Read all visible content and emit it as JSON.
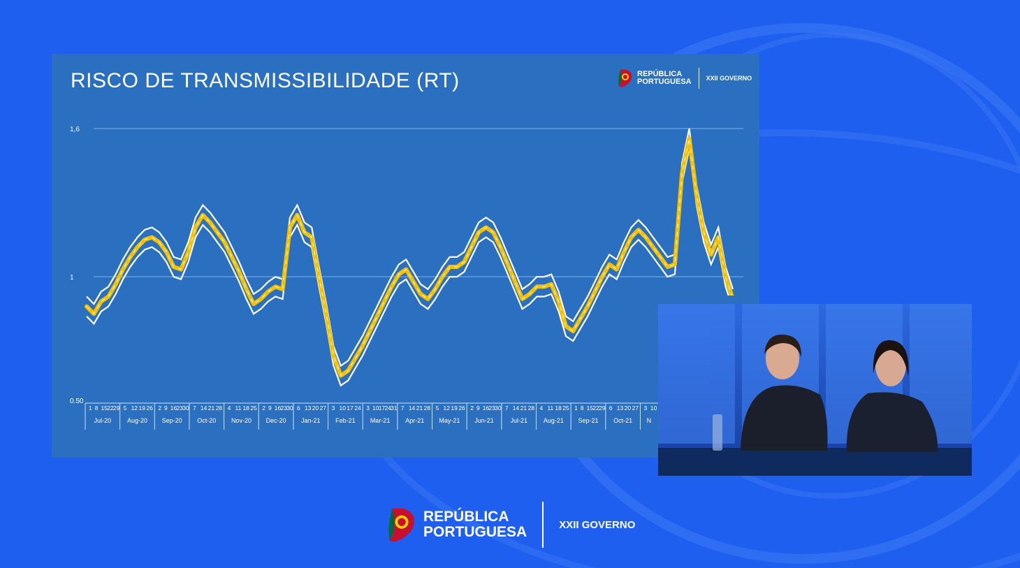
{
  "colors": {
    "background": "#1e5ff0",
    "slide": "#2a6fc0",
    "line_main": "#f5c000",
    "line_ci": "#ffffff",
    "grid": "#7fb0e8"
  },
  "slide": {
    "title": "RISCO DE TRANSMISSIBILIDADE (RT)",
    "logo": {
      "line1": "REPÚBLICA",
      "line2": "PORTUGUESA",
      "gov": "XXII GOVERNO"
    }
  },
  "footer": {
    "line1": "REPÚBLICA",
    "line2": "PORTUGUESA",
    "gov": "XXII GOVERNO"
  },
  "chart_data": {
    "type": "line",
    "title": "RISCO DE TRANSMISSIBILIDADE (RT)",
    "y_ticks": [
      "1,6",
      "1",
      "0.50"
    ],
    "ylim": [
      0.5,
      1.6
    ],
    "grid": true,
    "months": [
      "Jul-20",
      "Aug-20",
      "Sep-20",
      "Oct-20",
      "Nov-20",
      "Dec-20",
      "Jan-21",
      "Feb-21",
      "Mar-21",
      "Apr-21",
      "May-21",
      "Jun-21",
      "Jul-21",
      "Aug-21",
      "Sep-21",
      "Oct-21",
      "N"
    ],
    "week_days": [
      [
        "1",
        "8",
        "15",
        "22",
        "29"
      ],
      [
        "5",
        "12",
        "19",
        "26"
      ],
      [
        "2",
        "9",
        "16",
        "23",
        "30"
      ],
      [
        "7",
        "14",
        "21",
        "28"
      ],
      [
        "4",
        "11",
        "18",
        "25"
      ],
      [
        "2",
        "9",
        "16",
        "23",
        "30"
      ],
      [
        "6",
        "13",
        "20",
        "27"
      ],
      [
        "3",
        "10",
        "17",
        "24"
      ],
      [
        "3",
        "10",
        "17",
        "24",
        "31"
      ],
      [
        "7",
        "14",
        "21",
        "28"
      ],
      [
        "5",
        "12",
        "19",
        "26"
      ],
      [
        "2",
        "9",
        "16",
        "23",
        "30"
      ],
      [
        "7",
        "14",
        "21",
        "28"
      ],
      [
        "4",
        "11",
        "18",
        "25"
      ],
      [
        "1",
        "8",
        "15",
        "22",
        "29"
      ],
      [
        "6",
        "13",
        "20",
        "27"
      ],
      [
        "3",
        "10"
      ]
    ],
    "series": [
      {
        "values": [
          0.88,
          0.85,
          0.9,
          0.92,
          0.97,
          1.03,
          1.08,
          1.12,
          1.15,
          1.16,
          1.14,
          1.1,
          1.04,
          1.03,
          1.1,
          1.2,
          1.25,
          1.22,
          1.18,
          1.14,
          1.08,
          1.02,
          0.95,
          0.89,
          0.91,
          0.94,
          0.96,
          0.95,
          1.2,
          1.25,
          1.18,
          1.16,
          1.0,
          0.85,
          0.68,
          0.6,
          0.62,
          0.67,
          0.72,
          0.78,
          0.84,
          0.9,
          0.96,
          1.01,
          1.03,
          0.98,
          0.93,
          0.91,
          0.95,
          1.0,
          1.04,
          1.04,
          1.06,
          1.12,
          1.18,
          1.2,
          1.18,
          1.12,
          1.05,
          0.98,
          0.91,
          0.93,
          0.96,
          0.96,
          0.97,
          0.9,
          0.8,
          0.78,
          0.83,
          0.88,
          0.94,
          1.0,
          1.05,
          1.03,
          1.1,
          1.16,
          1.19,
          1.16,
          1.12,
          1.08,
          1.04,
          1.05,
          1.42,
          1.56,
          1.33,
          1.18,
          1.09,
          1.16,
          1.0,
          0.91
        ]
      }
    ]
  }
}
